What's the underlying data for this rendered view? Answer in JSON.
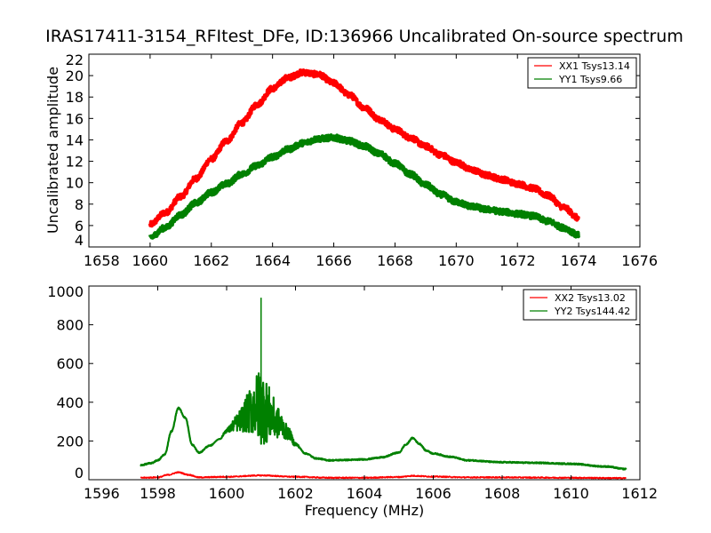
{
  "figure_title": "IRAS17411-3154_RFItest_DFe, ID:136966 Uncalibrated On-source spectrum",
  "chart_data": [
    {
      "type": "line",
      "panel": "top",
      "title": "IRAS17411-3154_RFItest_DFe, ID:136966 Uncalibrated On-source spectrum",
      "xlabel": "",
      "ylabel": "Uncalibrated amplitude",
      "xlim": [
        1658,
        1676
      ],
      "ylim": [
        4,
        22
      ],
      "xticks": [
        1658,
        1660,
        1662,
        1664,
        1666,
        1668,
        1670,
        1672,
        1674,
        1676
      ],
      "yticks": [
        4,
        6,
        8,
        10,
        12,
        14,
        16,
        18,
        20,
        22
      ],
      "grid": false,
      "legend_position": "top-right",
      "noise": 0.25,
      "series": [
        {
          "name": "XX1 Tsys13.14",
          "color": "#ff0000",
          "x": [
            1660,
            1660.5,
            1661,
            1661.5,
            1662,
            1662.5,
            1663,
            1663.5,
            1664,
            1664.5,
            1665,
            1665.5,
            1666,
            1666.5,
            1667,
            1667.5,
            1668,
            1668.5,
            1669,
            1669.5,
            1670,
            1670.5,
            1671,
            1671.5,
            1672,
            1672.5,
            1673,
            1673.5,
            1674
          ],
          "y": [
            6.1,
            7.2,
            8.7,
            10.4,
            12.2,
            13.9,
            15.6,
            17.3,
            18.8,
            19.8,
            20.3,
            20.1,
            19.3,
            18.2,
            17.0,
            15.9,
            15.0,
            14.2,
            13.4,
            12.6,
            11.9,
            11.2,
            10.7,
            10.3,
            9.9,
            9.5,
            8.8,
            7.7,
            6.7
          ]
        },
        {
          "name": "YY1 Tsys9.66",
          "color": "#008000",
          "x": [
            1660,
            1660.5,
            1661,
            1661.5,
            1662,
            1662.5,
            1663,
            1663.5,
            1664,
            1664.5,
            1665,
            1665.5,
            1666,
            1666.5,
            1667,
            1667.5,
            1668,
            1668.5,
            1669,
            1669.5,
            1670,
            1670.5,
            1671,
            1671.5,
            1672,
            1672.5,
            1673,
            1673.5,
            1674
          ],
          "y": [
            4.9,
            5.8,
            7.0,
            8.1,
            9.1,
            9.9,
            10.8,
            11.6,
            12.4,
            13.1,
            13.7,
            14.1,
            14.2,
            13.9,
            13.4,
            12.7,
            11.8,
            10.8,
            9.8,
            8.9,
            8.2,
            7.8,
            7.5,
            7.3,
            7.1,
            6.9,
            6.4,
            5.8,
            5.1
          ]
        }
      ]
    },
    {
      "type": "line",
      "panel": "bottom",
      "title": "",
      "xlabel": "Frequency (MHz)",
      "ylabel": "",
      "xlim": [
        1596,
        1612
      ],
      "ylim": [
        0,
        1000
      ],
      "xticks": [
        1596,
        1598,
        1600,
        1602,
        1604,
        1606,
        1608,
        1610,
        1612
      ],
      "yticks": [
        0,
        200,
        400,
        600,
        800,
        1000
      ],
      "grid": false,
      "legend_position": "top-right",
      "series": [
        {
          "name": "XX2 Tsys13.02",
          "color": "#ff0000",
          "x": [
            1597.5,
            1598.0,
            1598.3,
            1598.6,
            1598.9,
            1599.2,
            1600.0,
            1601.0,
            1602.0,
            1603.0,
            1604.0,
            1605.0,
            1605.4,
            1606.0,
            1607.0,
            1608.0,
            1609.0,
            1610.0,
            1611.6
          ],
          "y": [
            10,
            12,
            25,
            38,
            25,
            12,
            15,
            22,
            15,
            10,
            10,
            14,
            20,
            16,
            12,
            12,
            11,
            10,
            8
          ]
        },
        {
          "name": "YY2 Tsys144.42",
          "color": "#008000",
          "x": [
            1597.5,
            1597.8,
            1598.0,
            1598.2,
            1598.4,
            1598.6,
            1598.8,
            1599.0,
            1599.2,
            1599.5,
            1599.8,
            1600.0,
            1600.3,
            1600.6,
            1600.8,
            1601.0,
            1601.2,
            1601.5,
            1601.8,
            1602.0,
            1602.3,
            1602.6,
            1603.0,
            1603.5,
            1604.0,
            1604.5,
            1605.0,
            1605.2,
            1605.4,
            1605.6,
            1605.8,
            1606.0,
            1606.5,
            1607.0,
            1608.0,
            1609.0,
            1610.0,
            1611.0,
            1611.6
          ],
          "y": [
            75,
            85,
            100,
            130,
            250,
            370,
            320,
            180,
            140,
            175,
            210,
            250,
            280,
            310,
            330,
            320,
            300,
            270,
            230,
            180,
            135,
            110,
            100,
            102,
            105,
            115,
            140,
            180,
            215,
            185,
            150,
            135,
            118,
            100,
            90,
            87,
            82,
            68,
            55
          ],
          "spikes_range": [
            1599.6,
            1602.2
          ],
          "max_spike": 940,
          "max_spike_x": 1601.0
        }
      ]
    }
  ]
}
